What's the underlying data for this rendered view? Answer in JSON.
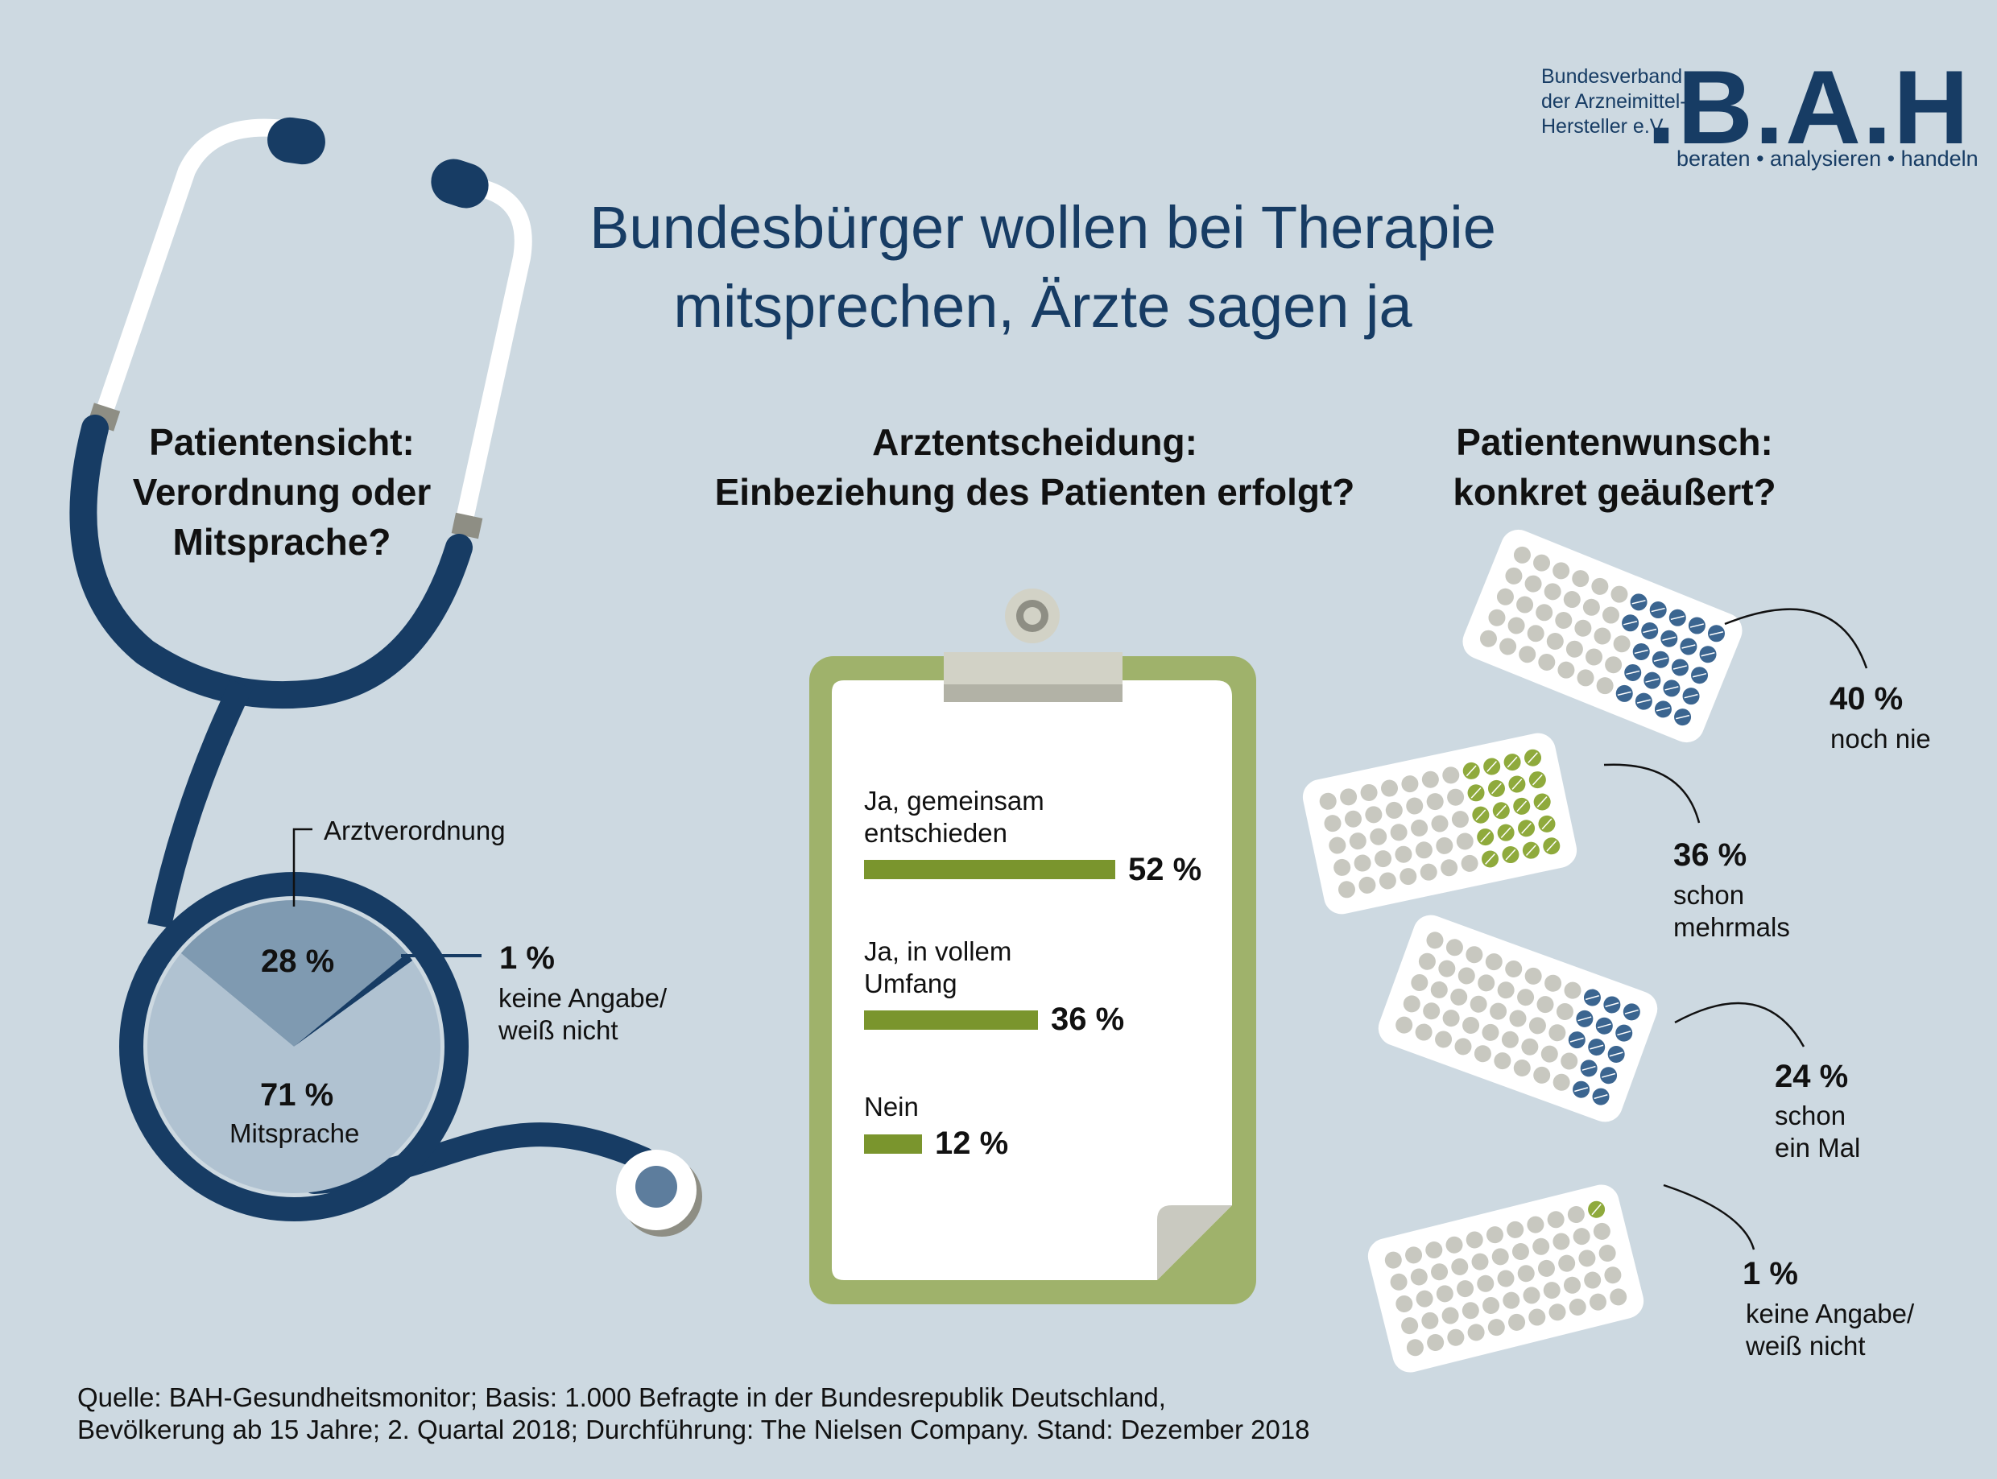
{
  "title": [
    "Bundesbürger wollen bei Therapie",
    "mitsprechen, Ärzte sagen ja"
  ],
  "logo": {
    "lines": [
      "Bundesverband",
      "der Arzneimittel-",
      "Hersteller e.V."
    ],
    "name": ".B.A.H",
    "tagline": "beraten • analysieren • handeln"
  },
  "colors": {
    "navy": "#173c64",
    "green": "#7a952d",
    "clipboard": "#9fb26b",
    "pieDark": "#7f9ab1",
    "pieLight": "#b0c2d1",
    "background": "#cdd9e1"
  },
  "chart_data": [
    {
      "type": "pie",
      "title": [
        "Patientensicht:",
        "Verordnung oder",
        "Mitsprache?"
      ],
      "slices": [
        {
          "label": "Mitsprache",
          "value": 71,
          "display": "71 %"
        },
        {
          "label": "Arztverordnung",
          "value": 28,
          "display": "28 %"
        },
        {
          "label": "keine Angabe/ weiß nicht",
          "label_lines": [
            "keine Angabe/",
            "weiß nicht"
          ],
          "value": 1,
          "display": "1 %"
        }
      ]
    },
    {
      "type": "bar",
      "orientation": "horizontal",
      "title": [
        "Arztentscheidung:",
        "Einbeziehung des Patienten erfolgt?"
      ],
      "bars": [
        {
          "label_lines": [
            "Ja, gemeinsam",
            "entschieden"
          ],
          "value": 52,
          "display": "52 %"
        },
        {
          "label_lines": [
            "Ja, in vollem",
            "Umfang"
          ],
          "value": 36,
          "display": "36 %"
        },
        {
          "label_lines": [
            "Nein"
          ],
          "value": 12,
          "display": "12 %"
        }
      ]
    },
    {
      "type": "pictogram",
      "title": [
        "Patientenwunsch:",
        "konkret geäußert?"
      ],
      "items": [
        {
          "value": 40,
          "display": "40 %",
          "label_lines": [
            "noch nie"
          ],
          "pill_color": "navy"
        },
        {
          "value": 36,
          "display": "36 %",
          "label_lines": [
            "schon",
            "mehrmals"
          ],
          "pill_color": "green"
        },
        {
          "value": 24,
          "display": "24 %",
          "label_lines": [
            "schon",
            "ein Mal"
          ],
          "pill_color": "navy"
        },
        {
          "value": 1,
          "display": "1 %",
          "label_lines": [
            "keine Angabe/",
            "weiß nicht"
          ],
          "pill_color": "green"
        }
      ]
    }
  ],
  "source": [
    "Quelle: BAH-Gesundheitsmonitor; Basis: 1.000 Befragte in der Bundesrepublik Deutschland,",
    "Bevölkerung ab 15 Jahre; 2. Quartal 2018; Durchführung: The Nielsen Company. Stand: Dezember 2018"
  ]
}
